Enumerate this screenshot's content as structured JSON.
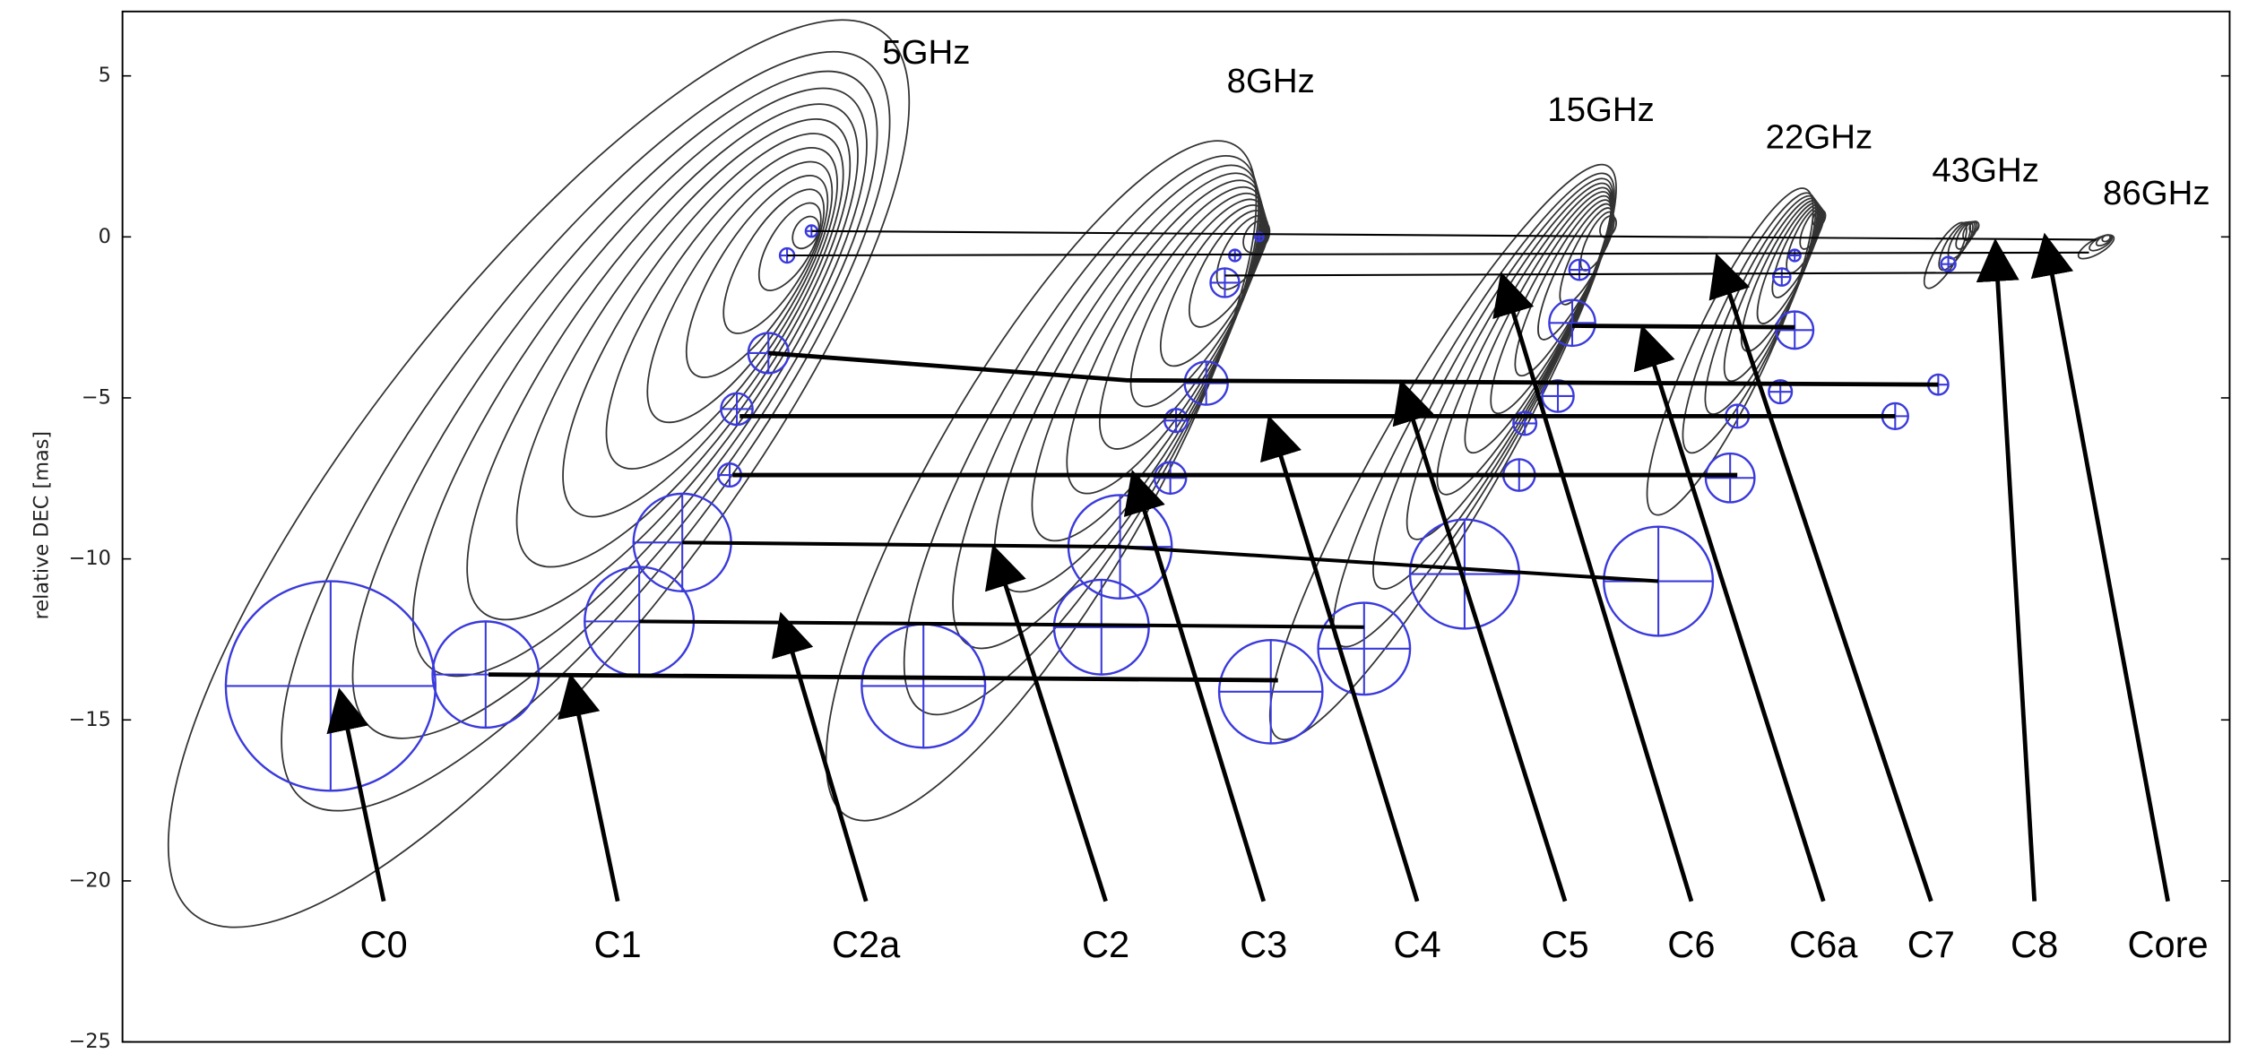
{
  "chart_data": {
    "type": "contour-map",
    "y_label": "relative DEC [mas]",
    "ylim": [
      -25,
      7
    ],
    "yticks": [
      5,
      0,
      {
        "value": -5,
        "label": "−5"
      },
      {
        "value": -10,
        "label": "−10"
      },
      {
        "value": -15,
        "label": "−15"
      },
      {
        "value": -20,
        "label": "−20"
      },
      {
        "value": -25,
        "label": "−25"
      }
    ],
    "frequency_labels": [
      "5GHz",
      "8GHz",
      "15GHz",
      "22GHz",
      "43GHz",
      "86GHz"
    ],
    "component_labels": [
      "C0",
      "C1",
      "C2a",
      "C2",
      "C3",
      "C4",
      "C5",
      "C6",
      "C6a",
      "C7",
      "C8",
      "Core"
    ]
  }
}
